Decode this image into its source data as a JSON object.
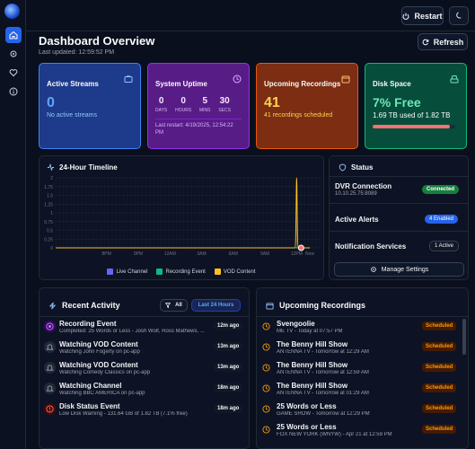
{
  "header": {
    "restart_label": "Restart",
    "refresh_label": "Refresh"
  },
  "dashboard": {
    "title": "Dashboard Overview",
    "last_updated": "Last updated: 12:59:52 PM"
  },
  "cards": {
    "streams": {
      "title": "Active Streams",
      "value": "0",
      "note": "No active streams"
    },
    "uptime": {
      "title": "System Uptime",
      "units": [
        {
          "value": "0",
          "label": "DAYS"
        },
        {
          "value": "0",
          "label": "HOURS"
        },
        {
          "value": "5",
          "label": "MINS"
        },
        {
          "value": "30",
          "label": "SECS"
        }
      ],
      "restart_line1": "Last restart: 4/19/2025, 12:54:22",
      "restart_line2": "PM"
    },
    "recordings": {
      "title": "Upcoming Recordings",
      "value": "41",
      "note": "41 recordings scheduled"
    },
    "disk": {
      "title": "Disk Space",
      "value": "7% Free",
      "note": "1.69 TB used of 1.82 TB",
      "used_fraction": 0.93
    }
  },
  "timeline": {
    "title": "24-Hour Timeline",
    "legend": [
      "Live Channel",
      "Recording Event",
      "VOD Content"
    ],
    "colors": {
      "live": "#6366f1",
      "recording": "#10b981",
      "vod": "#fbbf24"
    }
  },
  "chart_data": {
    "type": "line",
    "title": "24-Hour Timeline",
    "x": [
      "8PM",
      "9PM",
      "12AM",
      "3AM",
      "6AM",
      "9AM",
      "12PM",
      "Now"
    ],
    "ylim": [
      0,
      2
    ],
    "yticks": [
      "0",
      "0.25",
      "0.5",
      "0.75",
      "1",
      "1.25",
      "1.5",
      "1.75",
      "2"
    ],
    "series": [
      {
        "name": "Live Channel",
        "values": [
          0,
          0,
          0,
          0,
          0,
          0,
          0,
          0
        ]
      },
      {
        "name": "Recording Event",
        "values": [
          0,
          0,
          0,
          0,
          0,
          0,
          0,
          0
        ]
      },
      {
        "name": "VOD Content",
        "values": [
          0,
          0,
          0,
          0,
          0,
          0,
          2,
          0
        ]
      }
    ]
  },
  "status": {
    "title": "Status",
    "dvr_label": "DVR Connection",
    "dvr_addr": "10.10.25.75:8089",
    "dvr_state": "Connected",
    "alerts_label": "Active Alerts",
    "alerts_state": "4 Enabled",
    "notif_label": "Notification Services",
    "notif_state": "1 Active",
    "manage_label": "Manage Settings"
  },
  "activity": {
    "title": "Recent Activity",
    "filter_all": "All",
    "filter_24": "Last 24 Hours",
    "items": [
      {
        "title": "Recording Event",
        "detail": "Completed: 25 Words or Less - Josh Wolf, Ross Mathews, ...",
        "time": "12m ago",
        "icon": "record-icon"
      },
      {
        "title": "Watching VOD Content",
        "detail": "Watching John Fogerty on pc-app",
        "time": "13m ago",
        "icon": "bell-icon"
      },
      {
        "title": "Watching VOD Content",
        "detail": "Watching Comedy Classics on pc-app",
        "time": "13m ago",
        "icon": "bell-icon"
      },
      {
        "title": "Watching Channel",
        "detail": "Watching BBC AMERICA on pc-app",
        "time": "18m ago",
        "icon": "bell-icon"
      },
      {
        "title": "Disk Status Event",
        "detail": "Low Disk Warning - 131.64 GB of 1.82 TB (7.1% free)",
        "time": "18m ago",
        "icon": "warning-icon"
      }
    ]
  },
  "upcoming": {
    "title": "Upcoming Recordings",
    "items": [
      {
        "title": "Svengoolie",
        "detail": "ME TV - Today at 07:57 PM",
        "state": "Scheduled"
      },
      {
        "title": "The Benny Hill Show",
        "detail": "ANTENNA TV - Tomorrow at 12:29 AM",
        "state": "Scheduled"
      },
      {
        "title": "The Benny Hill Show",
        "detail": "ANTENNA TV - Tomorrow at 12:59 AM",
        "state": "Scheduled"
      },
      {
        "title": "The Benny Hill Show",
        "detail": "ANTENNA TV - Tomorrow at 01:29 AM",
        "state": "Scheduled"
      },
      {
        "title": "25 Words or Less",
        "detail": "GAME SHOW - Tomorrow at 12:29 PM",
        "state": "Scheduled"
      },
      {
        "title": "25 Words or Less",
        "detail": "FOX NEW YORK (WNYW) - Apr 21 at 12:59 PM",
        "state": "Scheduled"
      }
    ]
  }
}
